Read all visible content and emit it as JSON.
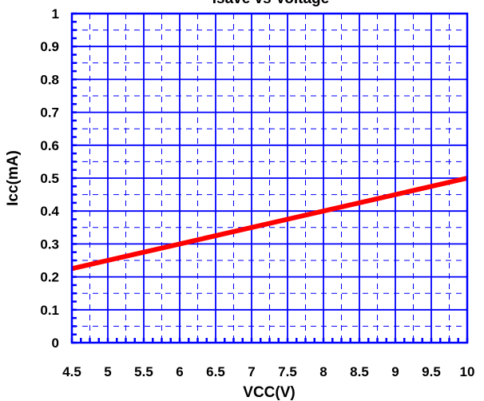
{
  "chart_data": {
    "type": "line",
    "title": "Isave vs Voltage",
    "xlabel": "VCC(V)",
    "ylabel": "Icc(mA)",
    "xlim": [
      4.5,
      10
    ],
    "ylim": [
      0,
      1
    ],
    "x_ticks": [
      "4.5",
      "5",
      "5.5",
      "6",
      "6.5",
      "7",
      "7.5",
      "8",
      "8.5",
      "9",
      "9.5",
      "10"
    ],
    "y_ticks": [
      "0",
      "0.1",
      "0.2",
      "0.3",
      "0.4",
      "0.5",
      "0.6",
      "0.7",
      "0.8",
      "0.9",
      "1"
    ],
    "grid": true,
    "series": [
      {
        "color": "#ff0000",
        "x": [
          4.5,
          6,
          8,
          10
        ],
        "y": [
          0.225,
          0.3,
          0.4,
          0.5
        ]
      }
    ],
    "colors": {
      "frame": "#0000ff",
      "grid": "#0000ff",
      "line": "#ff0000"
    }
  }
}
